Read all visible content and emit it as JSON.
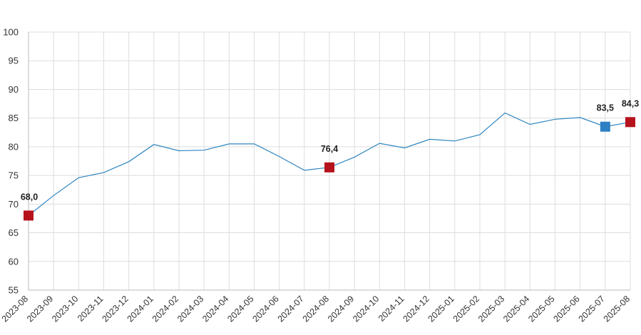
{
  "chart_data": {
    "type": "line",
    "title": "",
    "xlabel": "",
    "ylabel": "",
    "ylim": [
      55,
      100
    ],
    "yticks": [
      "55",
      "60",
      "65",
      "70",
      "75",
      "80",
      "85",
      "90",
      "95",
      "100"
    ],
    "grid": true,
    "categories": [
      "2023-08",
      "2023-09",
      "2023-10",
      "2023-11",
      "2023-12",
      "2024-01",
      "2024-02",
      "2024-03",
      "2024-04",
      "2024-05",
      "2024-06",
      "2024-07",
      "2024-08",
      "2024-09",
      "2024-10",
      "2024-11",
      "2024-12",
      "2025-01",
      "2025-02",
      "2025-03",
      "2025-04",
      "2025-05",
      "2025-06",
      "2025-07",
      "2025-08"
    ],
    "series": [
      {
        "values": [
          68.0,
          71.5,
          74.6,
          75.5,
          77.4,
          80.4,
          79.3,
          79.4,
          80.5,
          80.5,
          78.3,
          75.9,
          76.4,
          78.2,
          80.6,
          79.8,
          81.3,
          81.0,
          82.1,
          85.9,
          83.9,
          84.8,
          85.1,
          83.5,
          84.3
        ],
        "color": "#2e86c1"
      }
    ],
    "highlights": [
      {
        "index": 0,
        "label": "68,0",
        "color": "#b5121b"
      },
      {
        "index": 12,
        "label": "76,4",
        "color": "#b5121b"
      },
      {
        "index": 23,
        "label": "83,5",
        "color": "#2e7fc4"
      },
      {
        "index": 24,
        "label": "84,3",
        "color": "#b5121b"
      }
    ]
  }
}
